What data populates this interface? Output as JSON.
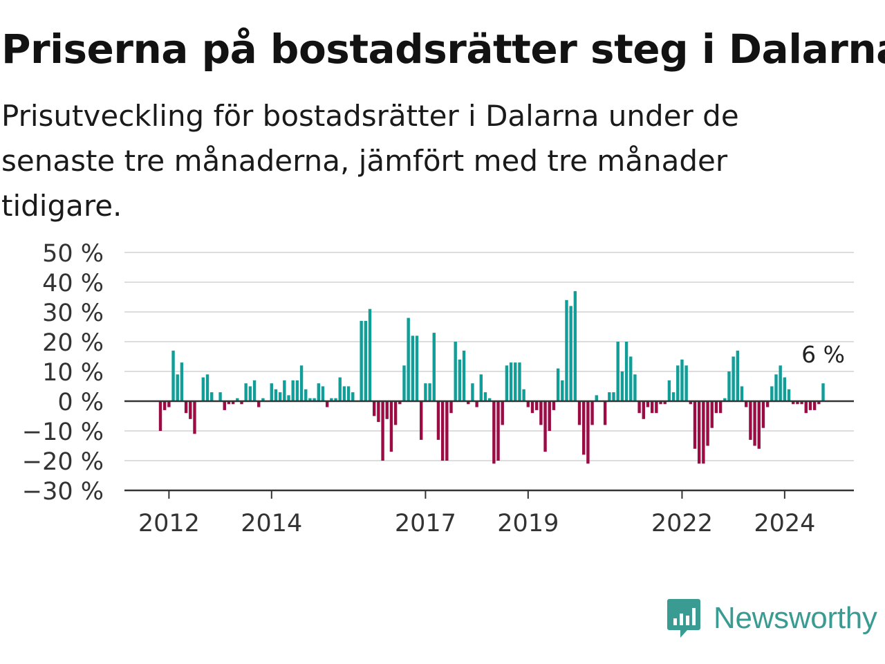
{
  "title": "Priserna på bostadsrätter steg i Dalarna",
  "subtitle": "Prisutveckling för bostadsrätter i Dalarna under de senaste tre månaderna, jämfört med tre månader tidigare.",
  "brand": {
    "name": "Newsworthy",
    "icon": "bar-chart-icon",
    "color": "#3a9b92"
  },
  "colors": {
    "positive": "#129e98",
    "negative": "#9b0c45",
    "grid": "#dddddd",
    "zero_line": "#333333"
  },
  "chart_data": {
    "type": "bar",
    "title": "Priserna på bostadsrätter steg i Dalarna",
    "subtitle": "Prisutveckling för bostadsrätter i Dalarna under de senaste tre månaderna, jämfört med tre månader tidigare.",
    "x_unit": "month",
    "x_start": "2011-11",
    "x_ticks": [
      2012,
      2014,
      2017,
      2019,
      2022,
      2024
    ],
    "y_ticks": [
      "50 %",
      "40 %",
      "30 %",
      "20 %",
      "10 %",
      "0 %",
      "−10 %",
      "−20 %",
      "−30 %"
    ],
    "ylim": [
      -30,
      50
    ],
    "y_unit": "%",
    "grid": true,
    "legend": "none",
    "annotation": {
      "text": "6 %",
      "value": 6,
      "target": "last"
    },
    "values": [
      -10,
      -3,
      -2,
      17,
      9,
      13,
      -4,
      -6,
      -11,
      0,
      8,
      9,
      3,
      0,
      3,
      -3,
      -1,
      -1,
      1,
      -1,
      6,
      5,
      7,
      -2,
      1,
      0,
      6,
      4,
      3,
      7,
      2,
      7,
      7,
      12,
      4,
      1,
      1,
      6,
      5,
      -2,
      1,
      1,
      8,
      5,
      5,
      3,
      0,
      27,
      27,
      31,
      -5,
      -7,
      -20,
      -6,
      -17,
      -8,
      -1,
      12,
      28,
      22,
      22,
      -13,
      6,
      6,
      23,
      -13,
      -20,
      -20,
      -4,
      20,
      14,
      17,
      -1,
      6,
      -2,
      9,
      3,
      1,
      -21,
      -20,
      -8,
      12,
      13,
      13,
      13,
      4,
      -2,
      -4,
      -3,
      -8,
      -17,
      -10,
      -3,
      11,
      7,
      34,
      32,
      37,
      -8,
      -18,
      -21,
      -8,
      2,
      0,
      -8,
      3,
      3,
      20,
      10,
      20,
      15,
      9,
      -4,
      -6,
      -2,
      -4,
      -4,
      -1,
      -1,
      7,
      3,
      12,
      14,
      12,
      -1,
      -16,
      -21,
      -21,
      -15,
      -9,
      -4,
      -4,
      1,
      10,
      15,
      17,
      5,
      -2,
      -13,
      -15,
      -16,
      -9,
      -2,
      5,
      9,
      12,
      8,
      4,
      -1,
      -1,
      -1,
      -4,
      -3,
      -3,
      -1,
      6
    ]
  }
}
